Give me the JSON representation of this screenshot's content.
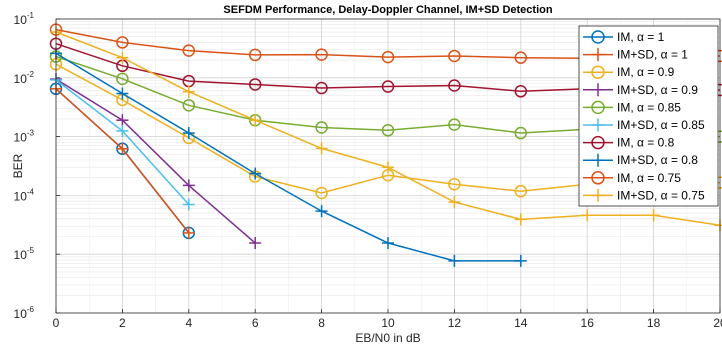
{
  "chart_data": {
    "type": "line",
    "title": "SEFDM Performance, Delay-Doppler Channel, IM+SD Detection",
    "xlabel": "EB/N0 in dB",
    "ylabel": "BER",
    "xlim": [
      0,
      20
    ],
    "ylim": [
      1e-06,
      0.1
    ],
    "yscale": "log",
    "grid": true,
    "minor_grid": true,
    "legend_position": "top-right",
    "x_ticks": [
      "0",
      "2",
      "4",
      "6",
      "8",
      "10",
      "12",
      "14",
      "16",
      "18",
      "20"
    ],
    "y_ticks": [
      {
        "base": "10",
        "exp": "-1"
      },
      {
        "base": "10",
        "exp": "-2"
      },
      {
        "base": "10",
        "exp": "-3"
      },
      {
        "base": "10",
        "exp": "-4"
      },
      {
        "base": "10",
        "exp": "-5"
      },
      {
        "base": "10",
        "exp": "-6"
      }
    ],
    "series": [
      {
        "name": "IM, α = 1",
        "color": "#0072BD",
        "marker": "circle",
        "x": [
          0,
          2,
          4
        ],
        "y": [
          0.0065,
          0.00062,
          2.3e-05
        ]
      },
      {
        "name": "IM+SD, α = 1",
        "color": "#D95319",
        "marker": "plus",
        "x": [
          0,
          2,
          4
        ],
        "y": [
          0.0065,
          0.00062,
          2.3e-05
        ]
      },
      {
        "name": "IM, α = 0.9",
        "color": "#EDB120",
        "marker": "circle",
        "x": [
          0,
          2,
          4,
          6,
          8,
          10,
          12,
          14,
          16,
          18,
          20
        ],
        "y": [
          0.017,
          0.0042,
          0.00095,
          0.00021,
          0.00011,
          0.00022,
          0.000155,
          0.000118,
          0.000155,
          0.000165,
          0.000165
        ]
      },
      {
        "name": "IM+SD, α = 0.9",
        "color": "#7E2F8E",
        "marker": "plus",
        "x": [
          0,
          2,
          4,
          6
        ],
        "y": [
          0.0095,
          0.0019,
          0.000148,
          1.55e-05
        ]
      },
      {
        "name": "IM, α = 0.85",
        "color": "#77AC30",
        "marker": "circle",
        "x": [
          0,
          2,
          4,
          6,
          8,
          10,
          12,
          14,
          16,
          18,
          20
        ],
        "y": [
          0.023,
          0.0096,
          0.0034,
          0.0019,
          0.00143,
          0.00128,
          0.0016,
          0.00115,
          0.00133,
          0.00105,
          0.001
        ]
      },
      {
        "name": "IM+SD, α = 0.85",
        "color": "#4DBEEE",
        "marker": "plus",
        "x": [
          0,
          2,
          4
        ],
        "y": [
          0.0092,
          0.00125,
          7e-05
        ]
      },
      {
        "name": "IM, α = 0.8",
        "color": "#A2142F",
        "marker": "circle",
        "x": [
          0,
          2,
          4,
          6,
          8,
          10,
          12,
          14,
          16,
          18,
          20
        ],
        "y": [
          0.038,
          0.016,
          0.0088,
          0.0077,
          0.0067,
          0.0071,
          0.0074,
          0.0059,
          0.0065,
          0.0062,
          0.0062
        ]
      },
      {
        "name": "IM+SD, α = 0.8",
        "color": "#0072BD",
        "marker": "plus",
        "x": [
          0,
          2,
          4,
          6,
          8,
          10,
          12,
          14
        ],
        "y": [
          0.026,
          0.0054,
          0.00115,
          0.000235,
          5.4e-05,
          1.55e-05,
          7.7e-06,
          7.7e-06
        ]
      },
      {
        "name": "IM, α = 0.75",
        "color": "#D95319",
        "marker": "circle",
        "x": [
          0,
          2,
          4,
          6,
          8,
          10,
          12,
          14,
          16,
          18,
          20
        ],
        "y": [
          0.066,
          0.04,
          0.029,
          0.0245,
          0.0248,
          0.0225,
          0.0235,
          0.022,
          0.0215,
          0.022,
          0.0235
        ]
      },
      {
        "name": "IM+SD, α = 0.75",
        "color": "#EDB120",
        "marker": "plus",
        "x": [
          0,
          2,
          4,
          6,
          8,
          10,
          12,
          14,
          16,
          18,
          20
        ],
        "y": [
          0.06,
          0.022,
          0.0058,
          0.0019,
          0.00063,
          0.0003,
          7.7e-05,
          3.9e-05,
          4.6e-05,
          4.6e-05,
          3.1e-05
        ]
      }
    ]
  }
}
